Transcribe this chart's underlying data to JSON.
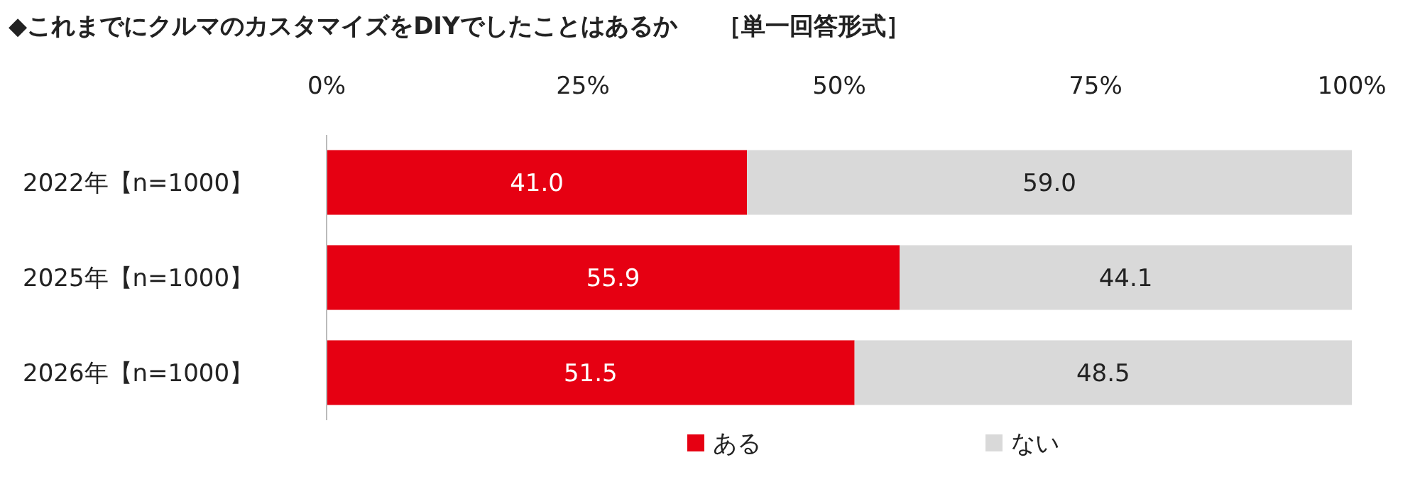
{
  "chart_data": {
    "type": "bar",
    "orientation": "horizontal",
    "stacked": true,
    "title": "◆これまでにクルマのカスタマイズをDIYでしたことはあるか",
    "subtitle": "［単一回答形式］",
    "categories": [
      "2022年【n=1000】",
      "2025年【n=1000】",
      "2026年【n=1000】"
    ],
    "series": [
      {
        "name": "ある",
        "color": "#e60012",
        "values": [
          41.0,
          55.9,
          51.5
        ],
        "value_labels": [
          "41.0",
          "55.9",
          "51.5"
        ]
      },
      {
        "name": "ない",
        "color": "#d9d9d9",
        "values": [
          59.0,
          44.1,
          48.5
        ],
        "value_labels": [
          "59.0",
          "44.1",
          "48.5"
        ]
      }
    ],
    "xlim": [
      0,
      100
    ],
    "xticks": [
      {
        "value": 0,
        "label": "0%"
      },
      {
        "value": 25,
        "label": "25%"
      },
      {
        "value": 50,
        "label": "50%"
      },
      {
        "value": 75,
        "label": "75%"
      },
      {
        "value": 100,
        "label": "100%"
      }
    ],
    "legend": "bottom"
  }
}
